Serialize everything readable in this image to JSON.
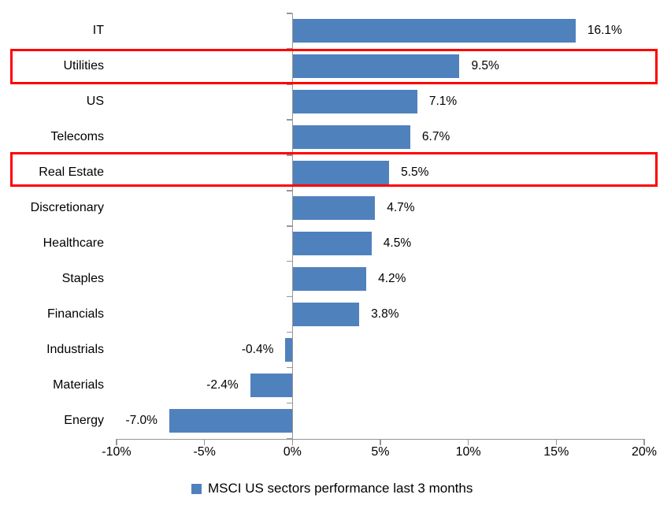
{
  "chart_data": {
    "type": "bar",
    "orientation": "horizontal",
    "title": "",
    "xlabel": "",
    "ylabel": "",
    "categories": [
      "IT",
      "Utilities",
      "US",
      "Telecoms",
      "Real Estate",
      "Discretionary",
      "Healthcare",
      "Staples",
      "Financials",
      "Industrials",
      "Materials",
      "Energy"
    ],
    "values": [
      16.1,
      9.5,
      7.1,
      6.7,
      5.5,
      4.7,
      4.5,
      4.2,
      3.8,
      -0.4,
      -2.4,
      -7.0
    ],
    "data_labels": [
      "16.1%",
      "9.5%",
      "7.1%",
      "6.7%",
      "5.5%",
      "4.7%",
      "4.5%",
      "4.2%",
      "3.8%",
      "-0.4%",
      "-2.4%",
      "-7.0%"
    ],
    "x_ticks": [
      "-10%",
      "-5%",
      "0%",
      "5%",
      "10%",
      "15%",
      "20%"
    ],
    "x_tick_values": [
      -10,
      -5,
      0,
      5,
      10,
      15,
      20
    ],
    "xlim": [
      -10,
      20
    ],
    "grid": false,
    "legend": "MSCI US sectors performance last 3 months",
    "legend_position": "bottom-center",
    "bar_color": "#4F81BD",
    "axis_color": "#969696",
    "highlight_color": "#FF0000",
    "highlighted_categories": [
      "Utilities",
      "Real Estate"
    ]
  }
}
